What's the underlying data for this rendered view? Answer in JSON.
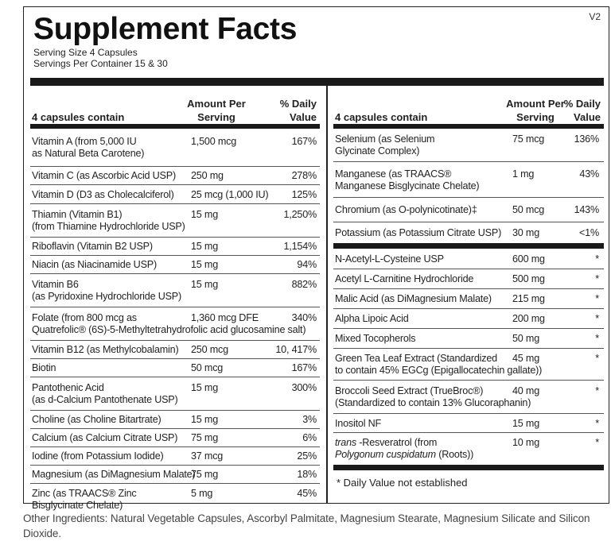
{
  "version_label": "V2",
  "title": "Supplement Facts",
  "serving_size": "Serving Size  4 Capsules",
  "servings_per_container": "Servings Per Container  15 & 30",
  "headers": {
    "contain": "4 capsules contain",
    "amount_1": "Amount Per",
    "amount_2": "Serving",
    "dv_1": "% Daily",
    "dv_2": "Value"
  },
  "left_rows": [
    {
      "name_1": "Vitamin A (from 5,000 IU",
      "name_2": "as Natural Beta Carotene)",
      "amount": "1,500 mcg",
      "dv": "167%"
    },
    {
      "name_1": "Vitamin C (as Ascorbic Acid USP)",
      "name_2": "",
      "amount": "250 mg",
      "dv": "278%"
    },
    {
      "name_1": "Vitamin D (D3 as Cholecalciferol)",
      "name_2": "",
      "amount": "25 mcg (1,000 IU)",
      "dv": "125%"
    },
    {
      "name_1": "Thiamin (Vitamin B1)",
      "name_2": "(from Thiamine Hydrochloride USP)",
      "amount": "15 mg",
      "dv": "1,250%"
    },
    {
      "name_1": "Riboflavin (Vitamin B2 USP)",
      "name_2": "",
      "amount": "15 mg",
      "dv": "1,154%"
    },
    {
      "name_1": "Niacin (as Niacinamide USP)",
      "name_2": "",
      "amount": "15 mg",
      "dv": "94%"
    },
    {
      "name_1": "Vitamin B6",
      "name_2": "(as Pyridoxine Hydrochloride USP)",
      "amount": "15 mg",
      "dv": "882%"
    },
    {
      "name_1": "Folate (from 800 mcg as",
      "name_2": "Quatrefolic® (6S)-5-Methyltetrahydrofolic acid glucosamine salt)",
      "amount": "1,360 mcg DFE",
      "dv": "340%"
    },
    {
      "name_1": "Vitamin B12 (as Methylcobalamin)",
      "name_2": "",
      "amount": "250 mcg",
      "dv": "10, 417%"
    },
    {
      "name_1": "Biotin",
      "name_2": "",
      "amount": "50 mcg",
      "dv": "167%"
    },
    {
      "name_1": "Pantothenic Acid",
      "name_2": "(as d-Calcium Pantothenate USP)",
      "amount": "15 mg",
      "dv": "300%"
    },
    {
      "name_1": "Choline (as Choline Bitartrate)",
      "name_2": "",
      "amount": "15 mg",
      "dv": "3%"
    },
    {
      "name_1": "Calcium (as Calcium Citrate USP)",
      "name_2": "",
      "amount": "75 mg",
      "dv": "6%"
    },
    {
      "name_1": "Iodine (from Potassium Iodide)",
      "name_2": "",
      "amount": "37 mcg",
      "dv": "25%"
    },
    {
      "name_1": "Magnesium (as DiMagnesium Malate)",
      "name_2": "",
      "amount": "75 mg",
      "dv": "18%"
    },
    {
      "name_1": "Zinc (as TRAACS® Zinc",
      "name_2": "Bisglycinate Chelate)",
      "amount": "5 mg",
      "dv": "45%"
    }
  ],
  "right_rows_dv": [
    {
      "name_1": "Selenium (as Selenium",
      "name_2": "Glycinate Complex)",
      "amount": "75 mcg",
      "dv": "136%"
    },
    {
      "name_1": "Manganese (as TRAACS®",
      "name_2": "Manganese Bisglycinate Chelate)",
      "amount": "1 mg",
      "dv": "43%"
    },
    {
      "name_1": "Chromium (as O-polynicotinate)‡",
      "name_2": "",
      "amount": "50 mcg",
      "dv": "143%"
    },
    {
      "name_1": "Potassium (as Potassium Citrate USP)",
      "name_2": "",
      "amount": "30 mg",
      "dv": "<1%"
    }
  ],
  "right_rows_nodv": [
    {
      "name_1": "N-Acetyl-L-Cysteine USP",
      "name_2": "",
      "amount": "600 mg",
      "dv": "*"
    },
    {
      "name_1": "Acetyl L-Carnitine Hydrochloride",
      "name_2": "",
      "amount": "500 mg",
      "dv": "*"
    },
    {
      "name_1": "Malic Acid (as DiMagnesium Malate)",
      "name_2": "",
      "amount": "215 mg",
      "dv": "*"
    },
    {
      "name_1": "Alpha Lipoic Acid",
      "name_2": "",
      "amount": "200 mg",
      "dv": "*"
    },
    {
      "name_1": "Mixed Tocopherols",
      "name_2": "",
      "amount": "50 mg",
      "dv": "*"
    },
    {
      "name_1": "Green Tea Leaf Extract  (Standardized",
      "name_2": "to contain 45% EGCg (Epigallocatechin gallate))",
      "amount": "45 mg",
      "dv": "*"
    },
    {
      "name_1": "Broccoli Seed Extract (TrueBroc®)",
      "name_2": "(Standardized to contain 13% Glucoraphanin)",
      "amount": "40 mg",
      "dv": "*"
    },
    {
      "name_1": "Inositol NF",
      "name_2": "",
      "amount": "15 mg",
      "dv": "*"
    },
    {
      "name_1": "trans -Resveratrol (from",
      "name_2": "Polygonum cuspidatum (Roots))",
      "amount": "10 mg",
      "dv": "*"
    }
  ],
  "footnote": "*  Daily Value not established",
  "other_ingredients": "Other Ingredients: Natural Vegetable Capsules, Ascorbyl Palmitate, Magnesium Stearate, Magnesium Silicate and Silicon Dioxide.",
  "colors": {
    "ink": "#222222",
    "bar": "#1a1a1a"
  }
}
